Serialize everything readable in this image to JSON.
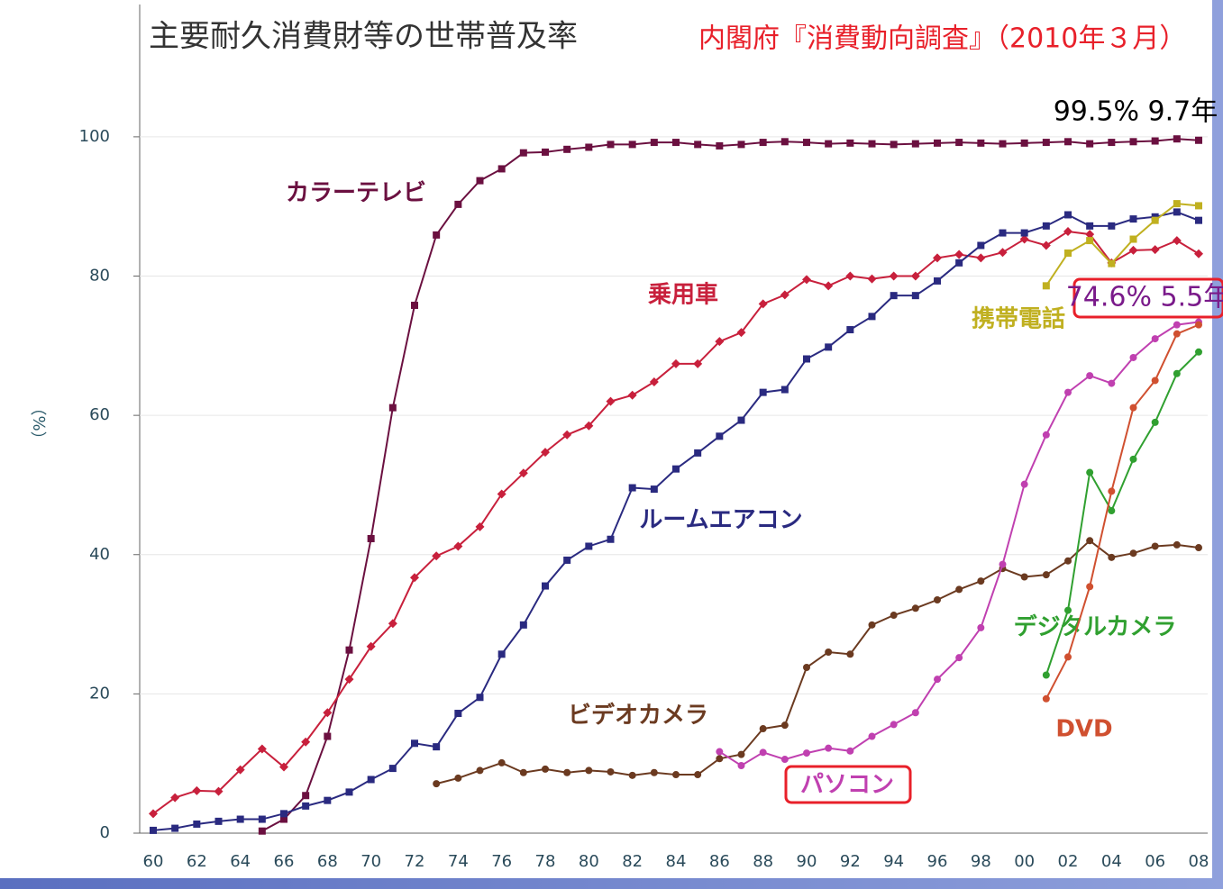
{
  "chart_data": {
    "type": "line",
    "title": "主要耐久消費財等の世帯普及率",
    "subtitle": "内閣府『消費動向調査』（2010年３月）",
    "ylabel": "（%）",
    "categories": [
      "60",
      null,
      "62",
      null,
      "64",
      null,
      "66",
      null,
      "68",
      null,
      "70",
      null,
      "72",
      null,
      "74",
      null,
      "76",
      null,
      "78",
      null,
      "80",
      null,
      "82",
      null,
      "84",
      null,
      "86",
      null,
      "88",
      null,
      "90",
      null,
      "92",
      null,
      "94",
      null,
      "96",
      null,
      "98",
      null,
      "00",
      null,
      "02",
      null,
      "04",
      null,
      "06",
      null,
      "08"
    ],
    "ylim": [
      0,
      119
    ],
    "yticks": [
      0,
      20,
      40,
      60,
      80,
      100
    ],
    "grid": true,
    "series": [
      {
        "name": "カラーテレビ",
        "color": "#6b1040",
        "marker": "square",
        "values": [
          null,
          null,
          null,
          null,
          null,
          0.3,
          2.0,
          5.4,
          13.9,
          26.3,
          42.3,
          61.1,
          75.8,
          85.9,
          90.3,
          93.7,
          95.4,
          97.7,
          97.8,
          98.2,
          98.5,
          98.9,
          98.9,
          99.2,
          99.2,
          98.9,
          98.7,
          98.9,
          99.2,
          99.3,
          99.2,
          99.0,
          99.1,
          99.0,
          98.9,
          99.0,
          99.1,
          99.2,
          99.1,
          99.0,
          99.1,
          99.2,
          99.3,
          99.0,
          99.2,
          99.3,
          99.4,
          99.7,
          99.5
        ]
      },
      {
        "name": "乗用車",
        "color": "#c8203c",
        "marker": "diamond",
        "values": [
          2.8,
          5.1,
          6.1,
          6.0,
          9.1,
          12.1,
          9.5,
          13.1,
          17.3,
          22.1,
          26.8,
          30.1,
          36.7,
          39.8,
          41.2,
          44.0,
          48.7,
          51.7,
          54.7,
          57.2,
          58.5,
          62.0,
          62.9,
          64.8,
          67.4,
          67.4,
          70.6,
          71.9,
          76.0,
          77.3,
          79.5,
          78.6,
          80.0,
          79.6,
          80.0,
          80.0,
          82.6,
          83.1,
          82.6,
          83.4,
          85.3,
          84.4,
          86.4,
          86.0,
          81.9,
          83.7,
          83.8,
          85.1,
          83.2
        ]
      },
      {
        "name": "ルームエアコン",
        "color": "#2a2a80",
        "marker": "square",
        "values": [
          0.4,
          0.7,
          1.3,
          1.7,
          2.0,
          2.0,
          2.8,
          3.9,
          4.7,
          5.9,
          7.7,
          9.3,
          12.9,
          12.4,
          17.2,
          19.5,
          25.7,
          29.9,
          35.5,
          39.2,
          41.2,
          42.2,
          49.6,
          49.4,
          52.3,
          54.6,
          57.0,
          59.3,
          63.3,
          63.7,
          68.1,
          69.8,
          72.3,
          74.2,
          77.2,
          77.2,
          79.3,
          81.9,
          84.4,
          86.2,
          86.2,
          87.2,
          88.8,
          87.2,
          87.2,
          88.2,
          88.5,
          89.2,
          88.0
        ]
      },
      {
        "name": "ビデオカメラ",
        "color": "#6b3a20",
        "marker": "circle",
        "values": [
          null,
          null,
          null,
          null,
          null,
          null,
          null,
          null,
          null,
          null,
          null,
          null,
          null,
          7.1,
          7.9,
          9.0,
          10.1,
          8.7,
          9.2,
          8.7,
          9.0,
          8.8,
          8.3,
          8.7,
          8.4,
          8.4,
          10.7,
          11.3,
          15.0,
          15.5,
          23.8,
          26.0,
          25.7,
          29.9,
          31.3,
          32.3,
          33.5,
          35.0,
          36.2,
          38.0,
          36.8,
          37.1,
          39.1,
          42.0,
          39.6,
          40.2,
          41.2,
          41.4,
          41.0
        ]
      },
      {
        "name": "パソコン",
        "color": "#c040b0",
        "marker": "circle",
        "values": [
          null,
          null,
          null,
          null,
          null,
          null,
          null,
          null,
          null,
          null,
          null,
          null,
          null,
          null,
          null,
          null,
          null,
          null,
          null,
          null,
          null,
          null,
          null,
          null,
          null,
          null,
          11.7,
          9.7,
          11.6,
          10.6,
          11.5,
          12.2,
          11.8,
          13.9,
          15.6,
          17.3,
          22.1,
          25.2,
          29.5,
          38.6,
          50.1,
          57.2,
          63.3,
          65.7,
          64.6,
          68.3,
          71.0,
          73.0,
          73.4
        ]
      },
      {
        "name": "携帯電話",
        "color": "#c0b020",
        "marker": "square",
        "values": [
          null,
          null,
          null,
          null,
          null,
          null,
          null,
          null,
          null,
          null,
          null,
          null,
          null,
          null,
          null,
          null,
          null,
          null,
          null,
          null,
          null,
          null,
          null,
          null,
          null,
          null,
          null,
          null,
          null,
          null,
          null,
          null,
          null,
          null,
          null,
          null,
          null,
          null,
          null,
          null,
          null,
          78.6,
          83.3,
          85.1,
          81.8,
          85.3,
          88.0,
          90.4,
          90.1
        ]
      },
      {
        "name": "デジタルカメラ",
        "color": "#30a030",
        "marker": "circle",
        "values": [
          null,
          null,
          null,
          null,
          null,
          null,
          null,
          null,
          null,
          null,
          null,
          null,
          null,
          null,
          null,
          null,
          null,
          null,
          null,
          null,
          null,
          null,
          null,
          null,
          null,
          null,
          null,
          null,
          null,
          null,
          null,
          null,
          null,
          null,
          null,
          null,
          null,
          null,
          null,
          null,
          null,
          22.7,
          32.0,
          51.8,
          46.3,
          53.7,
          59.0,
          66.0,
          69.1
        ]
      },
      {
        "name": "DVD",
        "color": "#d05030",
        "marker": "circle",
        "values": [
          null,
          null,
          null,
          null,
          null,
          null,
          null,
          null,
          null,
          null,
          null,
          null,
          null,
          null,
          null,
          null,
          null,
          null,
          null,
          null,
          null,
          null,
          null,
          null,
          null,
          null,
          null,
          null,
          null,
          null,
          null,
          null,
          null,
          null,
          null,
          null,
          null,
          null,
          null,
          null,
          null,
          19.3,
          25.3,
          35.4,
          49.1,
          61.1,
          65.0,
          71.7,
          73.0
        ]
      }
    ],
    "annotations": [
      "99.5% 9.7年",
      "74.6% 5.5年"
    ]
  }
}
